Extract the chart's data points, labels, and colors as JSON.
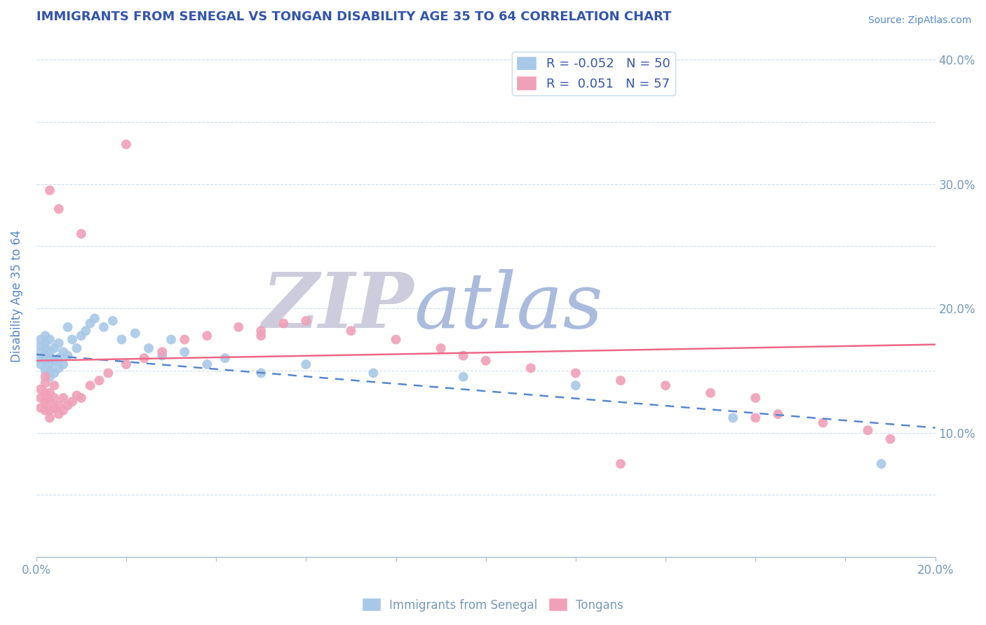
{
  "title": "IMMIGRANTS FROM SENEGAL VS TONGAN DISABILITY AGE 35 TO 64 CORRELATION CHART",
  "source": "Source: ZipAtlas.com",
  "ylabel": "Disability Age 35 to 64",
  "xlim": [
    0.0,
    0.2
  ],
  "ylim": [
    0.0,
    0.42
  ],
  "xticks": [
    0.0,
    0.02,
    0.04,
    0.06,
    0.08,
    0.1,
    0.12,
    0.14,
    0.16,
    0.18,
    0.2
  ],
  "yticks": [
    0.0,
    0.05,
    0.1,
    0.15,
    0.2,
    0.25,
    0.3,
    0.35,
    0.4
  ],
  "color_senegal": "#a8c8e8",
  "color_tongan": "#f0a0b8",
  "color_senegal_line": "#5588cc",
  "color_tongan_line": "#ee6688",
  "color_title": "#3355aa",
  "color_axis_label": "#5588cc",
  "color_tick": "#7799bb",
  "color_source": "#5588cc",
  "color_grid": "#ccddee",
  "color_wm_zip": "#ccccdd",
  "color_wm_atlas": "#aabbdd",
  "background": "#ffffff",
  "senegal_x": [
    0.001,
    0.001,
    0.001,
    0.001,
    0.001,
    0.002,
    0.002,
    0.002,
    0.002,
    0.002,
    0.002,
    0.003,
    0.003,
    0.003,
    0.003,
    0.003,
    0.003,
    0.004,
    0.004,
    0.004,
    0.005,
    0.005,
    0.005,
    0.006,
    0.006,
    0.007,
    0.007,
    0.008,
    0.009,
    0.01,
    0.011,
    0.012,
    0.013,
    0.015,
    0.017,
    0.019,
    0.022,
    0.025,
    0.028,
    0.03,
    0.033,
    0.038,
    0.042,
    0.05,
    0.06,
    0.075,
    0.095,
    0.12,
    0.155,
    0.188
  ],
  "senegal_y": [
    0.155,
    0.16,
    0.165,
    0.17,
    0.175,
    0.15,
    0.158,
    0.162,
    0.168,
    0.172,
    0.178,
    0.145,
    0.15,
    0.155,
    0.16,
    0.165,
    0.175,
    0.148,
    0.158,
    0.168,
    0.152,
    0.16,
    0.172,
    0.155,
    0.165,
    0.162,
    0.185,
    0.175,
    0.168,
    0.178,
    0.182,
    0.188,
    0.192,
    0.185,
    0.19,
    0.175,
    0.18,
    0.168,
    0.162,
    0.175,
    0.165,
    0.155,
    0.16,
    0.148,
    0.155,
    0.148,
    0.145,
    0.138,
    0.112,
    0.075
  ],
  "tongan_x": [
    0.001,
    0.001,
    0.001,
    0.002,
    0.002,
    0.002,
    0.002,
    0.002,
    0.003,
    0.003,
    0.003,
    0.003,
    0.004,
    0.004,
    0.004,
    0.005,
    0.005,
    0.006,
    0.006,
    0.007,
    0.008,
    0.009,
    0.01,
    0.012,
    0.014,
    0.016,
    0.02,
    0.024,
    0.028,
    0.033,
    0.038,
    0.045,
    0.05,
    0.055,
    0.06,
    0.07,
    0.08,
    0.09,
    0.095,
    0.1,
    0.11,
    0.12,
    0.13,
    0.14,
    0.15,
    0.16,
    0.165,
    0.175,
    0.185,
    0.19,
    0.003,
    0.005,
    0.01,
    0.02,
    0.05,
    0.13,
    0.16
  ],
  "tongan_y": [
    0.12,
    0.128,
    0.135,
    0.118,
    0.125,
    0.132,
    0.14,
    0.145,
    0.112,
    0.118,
    0.125,
    0.132,
    0.12,
    0.128,
    0.138,
    0.115,
    0.122,
    0.118,
    0.128,
    0.122,
    0.125,
    0.13,
    0.128,
    0.138,
    0.142,
    0.148,
    0.155,
    0.16,
    0.165,
    0.175,
    0.178,
    0.185,
    0.182,
    0.188,
    0.19,
    0.182,
    0.175,
    0.168,
    0.162,
    0.158,
    0.152,
    0.148,
    0.142,
    0.138,
    0.132,
    0.128,
    0.115,
    0.108,
    0.102,
    0.095,
    0.295,
    0.28,
    0.26,
    0.332,
    0.178,
    0.075,
    0.112
  ],
  "legend_label1": "R = -0.052   N = 50",
  "legend_label2": "R =  0.051   N = 57",
  "bottom_label1": "Immigrants from Senegal",
  "bottom_label2": "Tongans"
}
